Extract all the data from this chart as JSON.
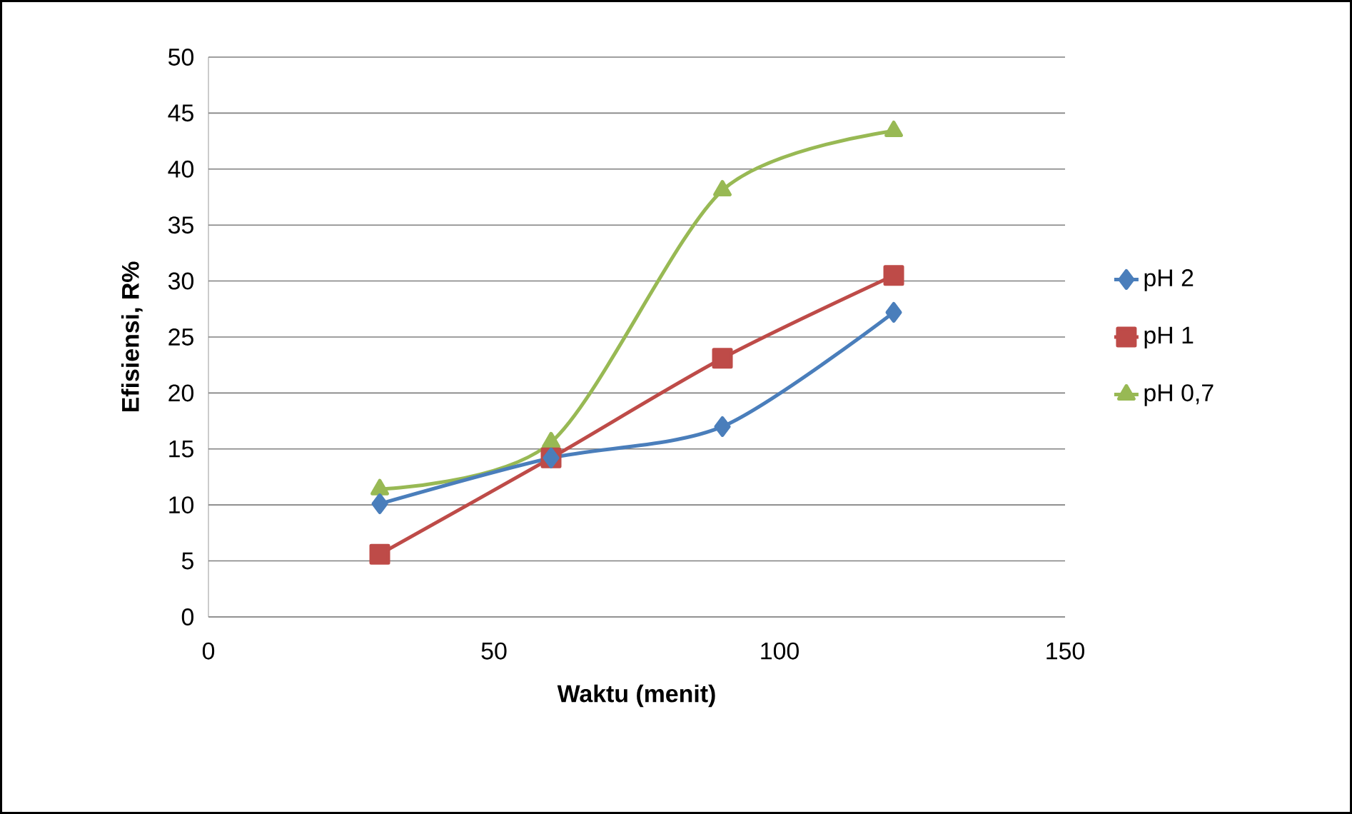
{
  "chart_data": {
    "type": "line",
    "xlabel": "Waktu (menit)",
    "ylabel": "Efisiensi, R%",
    "x": [
      30,
      60,
      90,
      120
    ],
    "series": [
      {
        "name": "pH 2",
        "color": "#4a7ebb",
        "marker": "diamond",
        "values": [
          10.1,
          14.2,
          17.0,
          27.2
        ]
      },
      {
        "name": "pH 1",
        "color": "#be4b48",
        "marker": "square",
        "values": [
          5.6,
          14.2,
          23.1,
          30.5
        ]
      },
      {
        "name": "pH 0,7",
        "color": "#98b954",
        "marker": "triangle",
        "values": [
          11.4,
          15.6,
          38.1,
          43.4
        ]
      }
    ],
    "xlim": [
      0,
      150
    ],
    "xticks": [
      0,
      50,
      100,
      150
    ],
    "ylim": [
      0,
      50
    ],
    "yticks": [
      0,
      5,
      10,
      15,
      20,
      25,
      30,
      35,
      40,
      45,
      50
    ],
    "grid": "y",
    "legend": "right"
  }
}
